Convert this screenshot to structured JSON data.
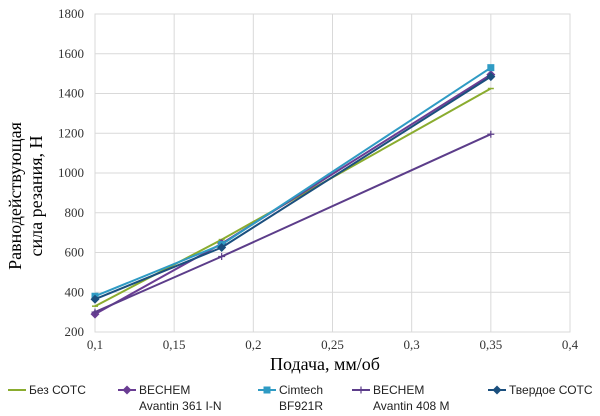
{
  "chart_data": {
    "type": "line",
    "xlabel": "Подача, мм/об",
    "ylabel": [
      "Равнодействующая",
      "сила резания, Н"
    ],
    "xlim": [
      0.1,
      0.4
    ],
    "ylim": [
      200,
      1800
    ],
    "x_ticks": [
      0.1,
      0.15,
      0.2,
      0.25,
      0.3,
      0.35,
      0.4
    ],
    "x_tick_labels": [
      "0,1",
      "0,15",
      "0,2",
      "0,25",
      "0,3",
      "0,35",
      "0,4"
    ],
    "y_ticks": [
      200,
      400,
      600,
      800,
      1000,
      1200,
      1400,
      1600,
      1800
    ],
    "y_tick_labels": [
      "200",
      "400",
      "600",
      "800",
      "1000",
      "1200",
      "1400",
      "1600",
      "1800"
    ],
    "grid": true,
    "legend_position": "bottom",
    "series": [
      {
        "name": "Без СОТС",
        "legend_lines": [
          "Без СОТС"
        ],
        "color": "#8aac2f",
        "marker": "dash",
        "points": [
          [
            0.1,
            330
          ],
          [
            0.18,
            665
          ],
          [
            0.35,
            1425
          ]
        ]
      },
      {
        "name": "BECHEM Avantin 361 I-N",
        "legend_lines": [
          "BECHEM",
          "Avantin 361 I-N"
        ],
        "color": "#6a3d93",
        "marker": "diamond",
        "points": [
          [
            0.1,
            290
          ],
          [
            0.18,
            645
          ],
          [
            0.35,
            1495
          ]
        ]
      },
      {
        "name": "Cimtech BF921R",
        "legend_lines": [
          "Cimtech",
          "BF921R"
        ],
        "color": "#2f9bc4",
        "marker": "square",
        "points": [
          [
            0.1,
            380
          ],
          [
            0.18,
            640
          ],
          [
            0.35,
            1530
          ]
        ]
      },
      {
        "name": "BECHEM Avantin 408 M",
        "legend_lines": [
          "BECHEM",
          "Avantin 408 M"
        ],
        "color": "#5c3d8a",
        "marker": "star",
        "points": [
          [
            0.1,
            300
          ],
          [
            0.18,
            580
          ],
          [
            0.35,
            1195
          ]
        ]
      },
      {
        "name": "Твердое СОТС",
        "legend_lines": [
          "Твердое СОТС"
        ],
        "color": "#1b4f7e",
        "marker": "diamond",
        "points": [
          [
            0.1,
            365
          ],
          [
            0.18,
            625
          ],
          [
            0.35,
            1485
          ]
        ]
      }
    ]
  }
}
